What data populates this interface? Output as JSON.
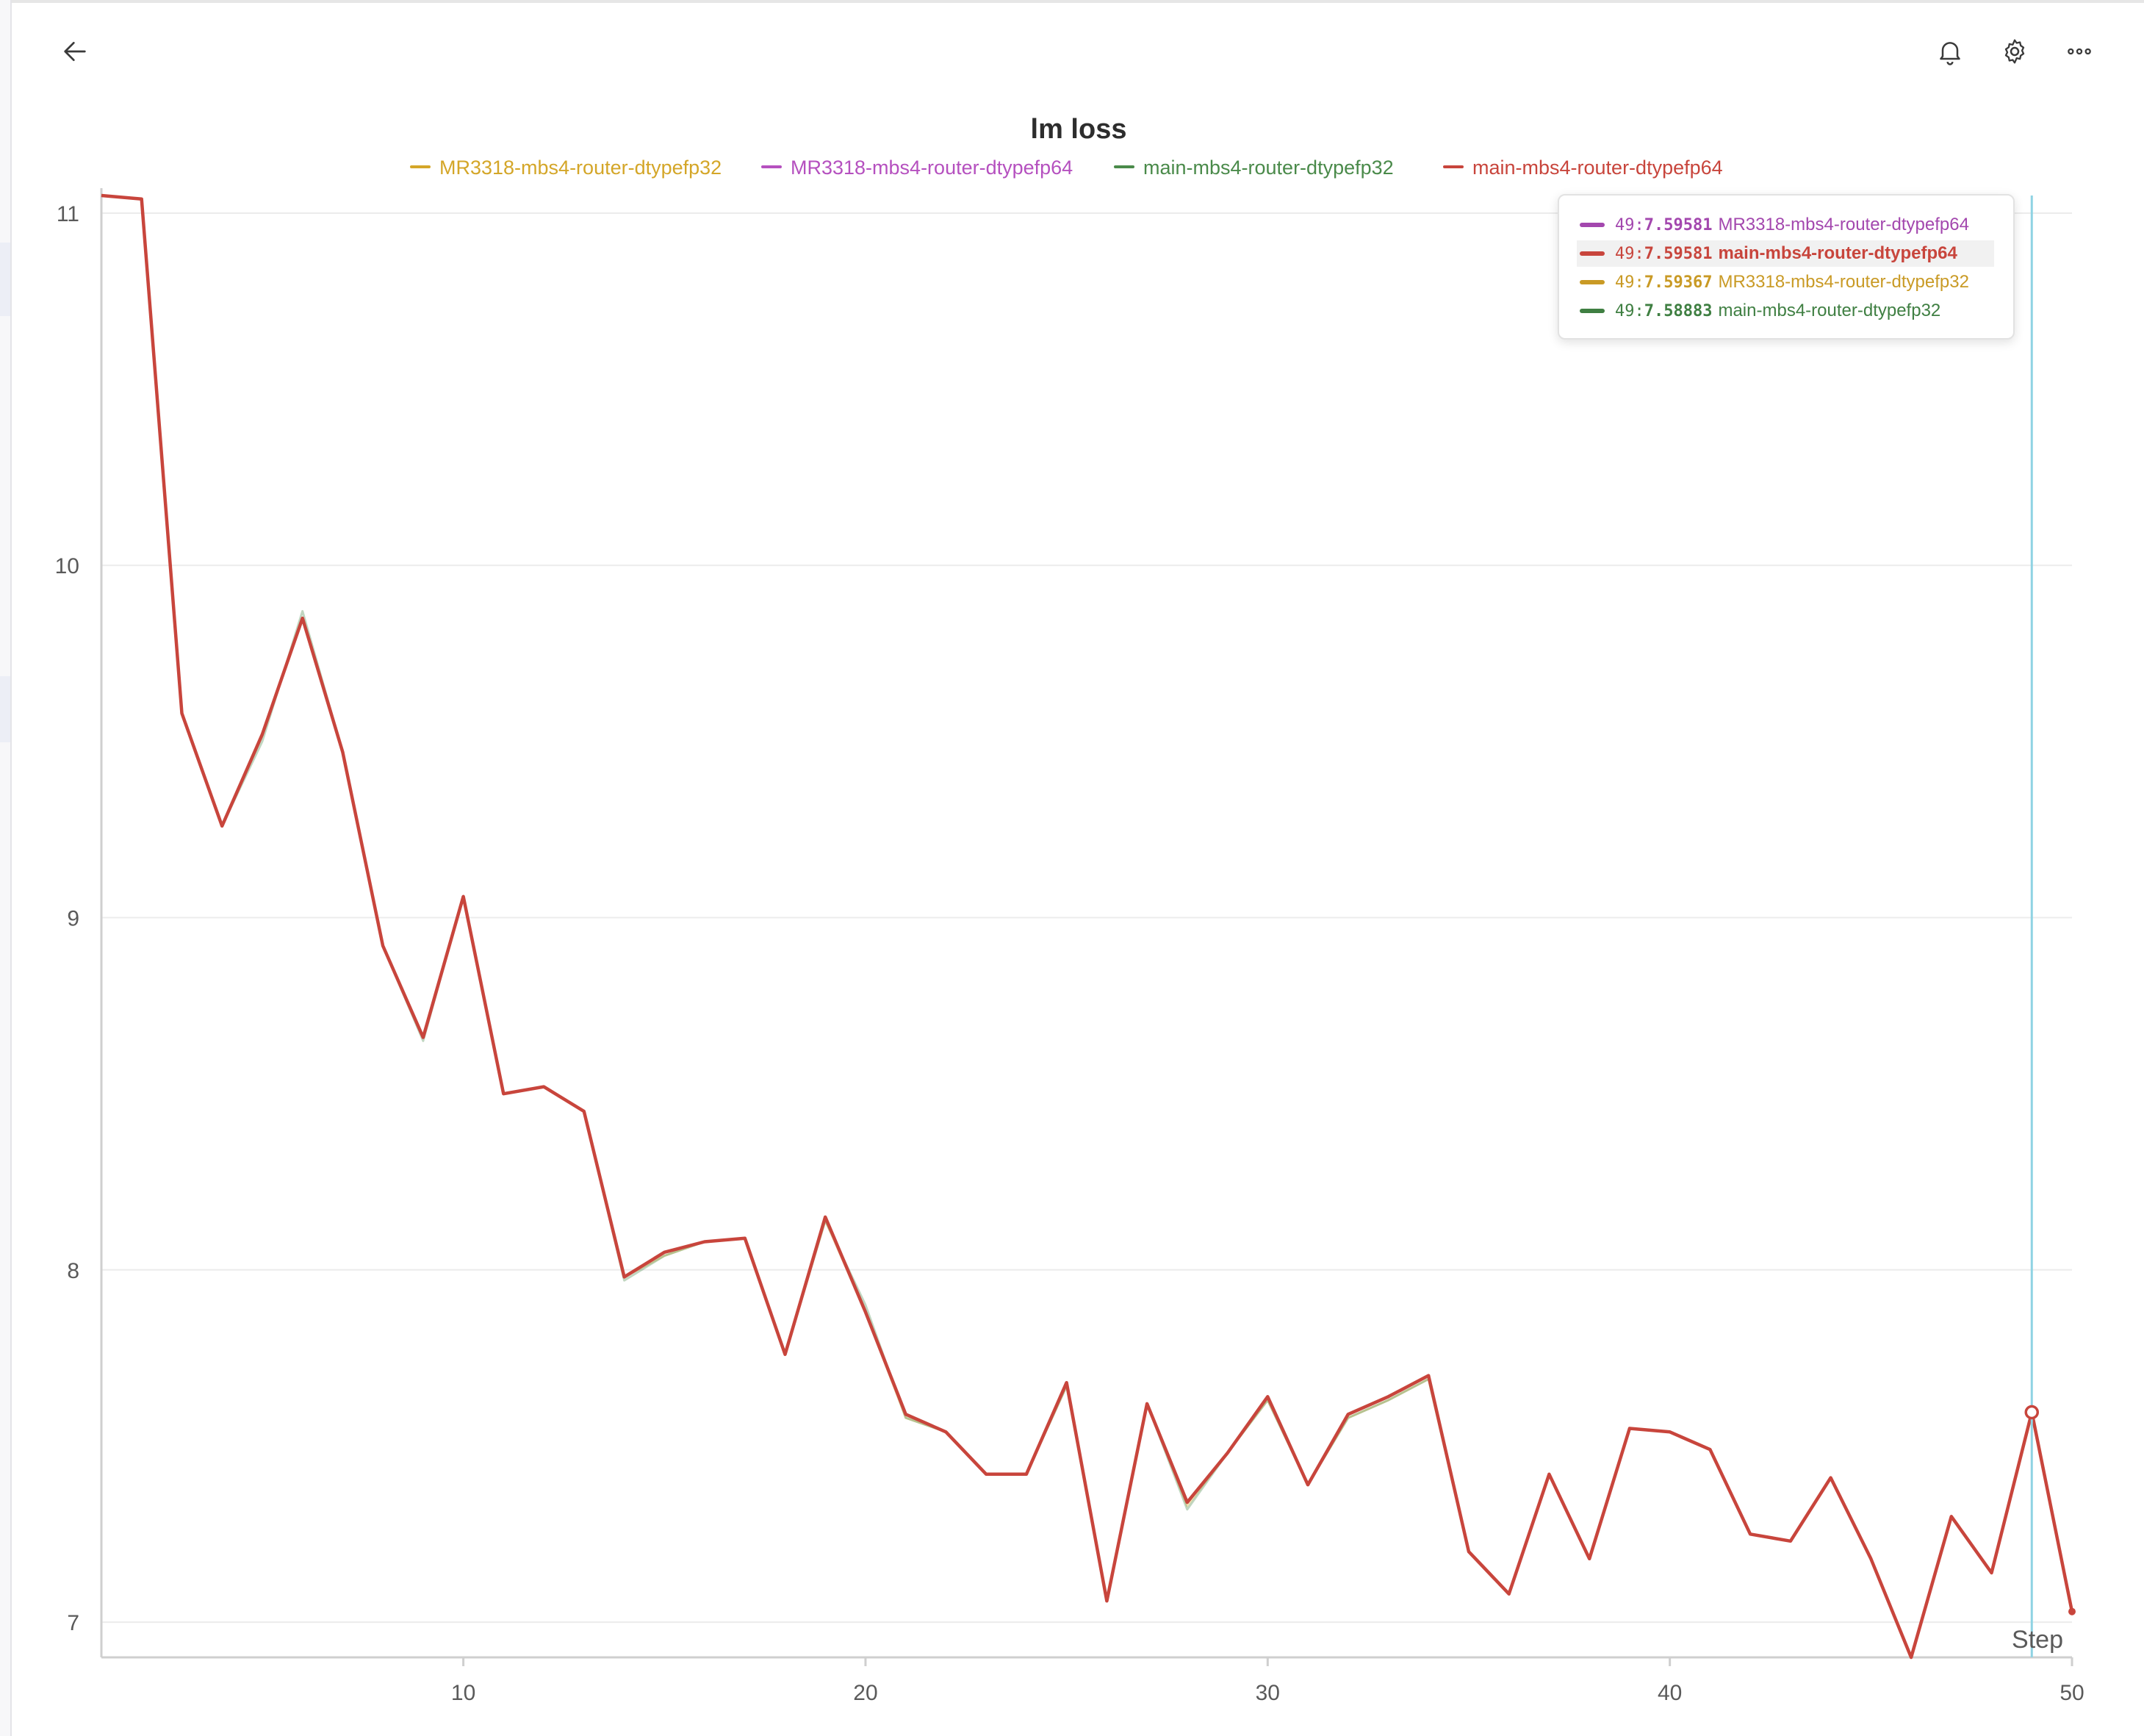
{
  "toolbar": {
    "back_icon": "arrow-left-icon",
    "bell_icon": "bell-icon",
    "gear_icon": "gear-icon",
    "more_icon": "more-horizontal-icon"
  },
  "chart_data": {
    "type": "line",
    "title": "lm loss",
    "xlabel": "Step",
    "ylabel": "",
    "xlim": [
      1,
      50
    ],
    "ylim": [
      6.9,
      11.05
    ],
    "x_ticks": [
      "10",
      "20",
      "30",
      "40",
      "50"
    ],
    "y_ticks": [
      "7",
      "8",
      "9",
      "10",
      "11"
    ],
    "grid": true,
    "legend_position": "top",
    "x": [
      1,
      2,
      3,
      4,
      5,
      6,
      7,
      8,
      9,
      10,
      11,
      12,
      13,
      14,
      15,
      16,
      17,
      18,
      19,
      20,
      21,
      22,
      23,
      24,
      25,
      26,
      27,
      28,
      29,
      30,
      31,
      32,
      33,
      34,
      35,
      36,
      37,
      38,
      39,
      40,
      41,
      42,
      43,
      44,
      45,
      46,
      47,
      48,
      49,
      50
    ],
    "series": [
      {
        "name": "MR3318-mbs4-router-dtypefp32",
        "color": "#d4a628",
        "values": [
          11.05,
          11.04,
          9.58,
          9.26,
          9.52,
          9.85,
          9.47,
          8.92,
          8.66,
          9.06,
          8.5,
          8.52,
          8.45,
          7.98,
          8.04,
          8.08,
          8.09,
          7.76,
          8.14,
          7.88,
          7.58,
          7.54,
          7.42,
          7.42,
          7.67,
          7.06,
          7.62,
          7.33,
          7.48,
          7.63,
          7.39,
          7.58,
          7.63,
          7.69,
          7.2,
          7.08,
          7.42,
          7.18,
          7.55,
          7.54,
          7.49,
          7.25,
          7.23,
          7.41,
          7.18,
          6.9,
          7.3,
          7.14,
          7.59367,
          7.03
        ]
      },
      {
        "name": "MR3318-mbs4-router-dtypefp64",
        "color": "#b550bf",
        "values": [
          11.05,
          11.04,
          9.58,
          9.26,
          9.52,
          9.85,
          9.47,
          8.92,
          8.66,
          9.06,
          8.5,
          8.52,
          8.45,
          7.98,
          8.05,
          8.08,
          8.09,
          7.76,
          8.15,
          7.88,
          7.59,
          7.54,
          7.42,
          7.42,
          7.68,
          7.06,
          7.62,
          7.34,
          7.48,
          7.64,
          7.39,
          7.59,
          7.64,
          7.7,
          7.2,
          7.08,
          7.42,
          7.18,
          7.55,
          7.54,
          7.49,
          7.25,
          7.23,
          7.41,
          7.18,
          6.9,
          7.3,
          7.14,
          7.59581,
          7.03
        ]
      },
      {
        "name": "main-mbs4-router-dtypefp32",
        "color": "#4a8a4a",
        "values": [
          11.05,
          11.04,
          9.58,
          9.26,
          9.5,
          9.87,
          9.47,
          8.92,
          8.65,
          9.06,
          8.5,
          8.52,
          8.45,
          7.97,
          8.04,
          8.08,
          8.09,
          7.76,
          8.14,
          7.9,
          7.58,
          7.54,
          7.42,
          7.42,
          7.67,
          7.06,
          7.62,
          7.32,
          7.48,
          7.63,
          7.39,
          7.58,
          7.63,
          7.69,
          7.2,
          7.08,
          7.42,
          7.18,
          7.55,
          7.54,
          7.49,
          7.25,
          7.23,
          7.41,
          7.18,
          6.9,
          7.3,
          7.14,
          7.58883,
          7.03
        ]
      },
      {
        "name": "main-mbs4-router-dtypefp64",
        "color": "#c8453c",
        "values": [
          11.05,
          11.04,
          9.58,
          9.26,
          9.52,
          9.85,
          9.47,
          8.92,
          8.66,
          9.06,
          8.5,
          8.52,
          8.45,
          7.98,
          8.05,
          8.08,
          8.09,
          7.76,
          8.15,
          7.88,
          7.59,
          7.54,
          7.42,
          7.42,
          7.68,
          7.06,
          7.62,
          7.34,
          7.48,
          7.64,
          7.39,
          7.59,
          7.64,
          7.7,
          7.2,
          7.08,
          7.42,
          7.18,
          7.55,
          7.54,
          7.49,
          7.25,
          7.23,
          7.41,
          7.18,
          6.9,
          7.3,
          7.14,
          7.59581,
          7.03
        ]
      }
    ],
    "hover": {
      "step": 49,
      "rows": [
        {
          "step": "49",
          "value": "7.59581",
          "name": "MR3318-mbs4-router-dtypefp64",
          "color": "#a347ae",
          "highlight": false
        },
        {
          "step": "49",
          "value": "7.59581",
          "name": "main-mbs4-router-dtypefp64",
          "color": "#c8453c",
          "highlight": true
        },
        {
          "step": "49",
          "value": "7.59367",
          "name": "MR3318-mbs4-router-dtypefp32",
          "color": "#c99a25",
          "highlight": false
        },
        {
          "step": "49",
          "value": "7.58883",
          "name": "main-mbs4-router-dtypefp32",
          "color": "#3f7f42",
          "highlight": false
        }
      ]
    }
  }
}
